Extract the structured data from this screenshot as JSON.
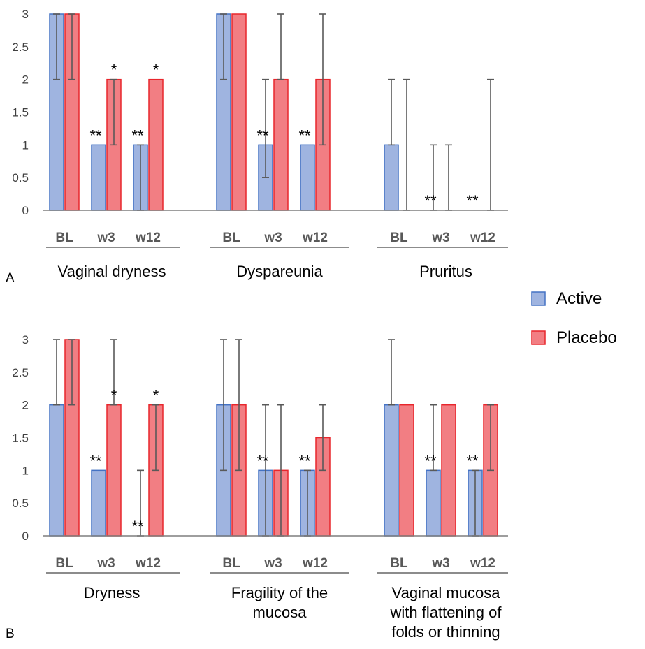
{
  "chart_data": [
    {
      "panel": "A",
      "type": "bar",
      "ylim": [
        0,
        3
      ],
      "yticks": [
        "0",
        "0.5",
        "1",
        "1.5",
        "2",
        "2.5",
        "3"
      ],
      "grid": false,
      "groups": [
        {
          "label": "Vaginal dryness",
          "categories": [
            "BL",
            "w3",
            "w12"
          ],
          "series": [
            {
              "name": "Active",
              "values": [
                3,
                1,
                1
              ],
              "error_low": [
                2,
                1,
                0
              ],
              "error_high": [
                3,
                1,
                1
              ],
              "stars": [
                "",
                "**",
                "**"
              ]
            },
            {
              "name": "Placebo",
              "values": [
                3,
                2,
                2
              ],
              "error_low": [
                2,
                1,
                2
              ],
              "error_high": [
                3,
                2,
                2
              ],
              "stars": [
                "",
                "*",
                "*"
              ]
            }
          ]
        },
        {
          "label": "Dyspareunia",
          "categories": [
            "BL",
            "w3",
            "w12"
          ],
          "series": [
            {
              "name": "Active",
              "values": [
                3,
                1,
                1
              ],
              "error_low": [
                2,
                0.5,
                1
              ],
              "error_high": [
                3,
                2,
                1
              ],
              "stars": [
                "",
                "**",
                "**"
              ]
            },
            {
              "name": "Placebo",
              "values": [
                3,
                2,
                2
              ],
              "error_low": [
                3,
                2,
                1
              ],
              "error_high": [
                3,
                3,
                3
              ],
              "stars": [
                "",
                "",
                ""
              ]
            }
          ]
        },
        {
          "label": "Pruritus",
          "categories": [
            "BL",
            "w3",
            "w12"
          ],
          "series": [
            {
              "name": "Active",
              "values": [
                1,
                0,
                0
              ],
              "error_low": [
                1,
                0,
                0
              ],
              "error_high": [
                2,
                1,
                0
              ],
              "stars": [
                "",
                "**",
                "**"
              ]
            },
            {
              "name": "Placebo",
              "values": [
                0,
                0,
                0
              ],
              "error_low": [
                0,
                0,
                0
              ],
              "error_high": [
                2,
                1,
                2
              ],
              "stars": [
                "",
                "",
                ""
              ]
            }
          ]
        }
      ]
    },
    {
      "panel": "B",
      "type": "bar",
      "ylim": [
        0,
        3
      ],
      "yticks": [
        "0",
        "0.5",
        "1",
        "1.5",
        "2",
        "2.5",
        "3"
      ],
      "grid": false,
      "groups": [
        {
          "label": "Dryness",
          "categories": [
            "BL",
            "w3",
            "w12"
          ],
          "series": [
            {
              "name": "Active",
              "values": [
                2,
                1,
                0
              ],
              "error_low": [
                2,
                1,
                0
              ],
              "error_high": [
                3,
                1,
                1
              ],
              "stars": [
                "",
                "**",
                "**"
              ]
            },
            {
              "name": "Placebo",
              "values": [
                3,
                2,
                2
              ],
              "error_low": [
                2,
                2,
                1
              ],
              "error_high": [
                3,
                3,
                2
              ],
              "stars": [
                "",
                "*",
                "*"
              ]
            }
          ]
        },
        {
          "label": "Fragility of the mucosa",
          "categories": [
            "BL",
            "w3",
            "w12"
          ],
          "series": [
            {
              "name": "Active",
              "values": [
                2,
                1,
                1
              ],
              "error_low": [
                1,
                0,
                0
              ],
              "error_high": [
                3,
                2,
                1
              ],
              "stars": [
                "",
                "**",
                "**"
              ]
            },
            {
              "name": "Placebo",
              "values": [
                2,
                1,
                1.5
              ],
              "error_low": [
                1,
                0,
                1
              ],
              "error_high": [
                3,
                2,
                2
              ],
              "stars": [
                "",
                "",
                ""
              ]
            }
          ]
        },
        {
          "label": "Vaginal mucosa with flattening of folds or thinning",
          "categories": [
            "BL",
            "w3",
            "w12"
          ],
          "series": [
            {
              "name": "Active",
              "values": [
                2,
                1,
                1
              ],
              "error_low": [
                2,
                1,
                0
              ],
              "error_high": [
                3,
                2,
                1
              ],
              "stars": [
                "",
                "**",
                "**"
              ]
            },
            {
              "name": "Placebo",
              "values": [
                2,
                2,
                2
              ],
              "error_low": [
                2,
                2,
                1
              ],
              "error_high": [
                2,
                2,
                2
              ],
              "stars": [
                "",
                "",
                ""
              ]
            }
          ]
        }
      ]
    }
  ],
  "legend": {
    "placement": "right",
    "items": [
      {
        "name": "Active",
        "color": "#9fb4e0",
        "border": "#4472c4"
      },
      {
        "name": "Placebo",
        "color": "#f27e83",
        "border": "#e8262c"
      }
    ]
  },
  "colors": {
    "axis": "#7f7f7f",
    "errorbar": "#595959",
    "tick_text": "#404040",
    "category_text": "#595959"
  }
}
